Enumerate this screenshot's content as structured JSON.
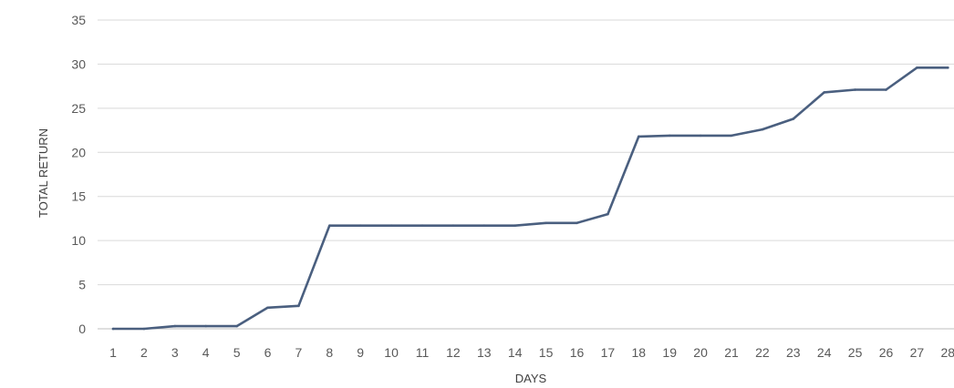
{
  "chart_data": {
    "type": "line",
    "title": "",
    "xlabel": "DAYS",
    "ylabel": "TOTAL RETURN",
    "x": [
      1,
      2,
      3,
      4,
      5,
      6,
      7,
      8,
      9,
      10,
      11,
      12,
      13,
      14,
      15,
      16,
      17,
      18,
      19,
      20,
      21,
      22,
      23,
      24,
      25,
      26,
      27,
      28
    ],
    "x_tick_labels": [
      "1",
      "2",
      "3",
      "4",
      "5",
      "6",
      "7",
      "8",
      "9",
      "10",
      "11",
      "12",
      "13",
      "14",
      "15",
      "16",
      "17",
      "18",
      "19",
      "20",
      "21",
      "22",
      "23",
      "24",
      "25",
      "26",
      "27",
      "28"
    ],
    "y_tick_labels": [
      "0",
      "5",
      "10",
      "15",
      "20",
      "25",
      "30",
      "35"
    ],
    "ylim": [
      0,
      35
    ],
    "yticks": [
      0,
      5,
      10,
      15,
      20,
      25,
      30,
      35
    ],
    "grid": true,
    "legend": "none",
    "series": [
      {
        "values": [
          0,
          0,
          0.3,
          0.3,
          0.3,
          2.4,
          2.6,
          11.7,
          11.7,
          11.7,
          11.7,
          11.7,
          11.7,
          11.7,
          12.0,
          12.0,
          13.0,
          21.8,
          21.9,
          21.9,
          21.9,
          22.6,
          23.8,
          26.8,
          27.1,
          27.1,
          29.6,
          29.6
        ],
        "color": "#4a5f7f"
      }
    ]
  }
}
